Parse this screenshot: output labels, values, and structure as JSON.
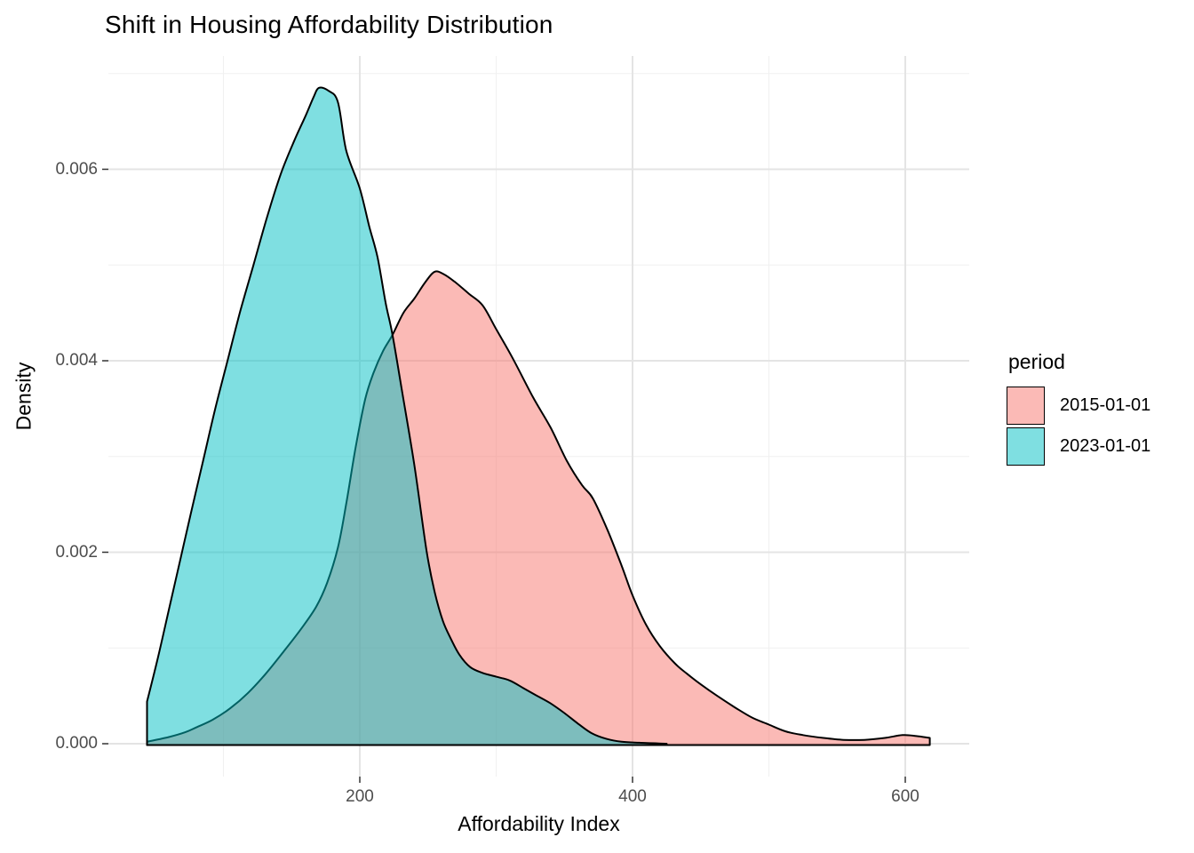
{
  "title": "Shift in Housing Affordability Distribution",
  "chart_data": {
    "type": "area",
    "subtype": "overlapping-density",
    "title": "Shift in Housing Affordability Distribution",
    "xlabel": "Affordability Index",
    "ylabel": "Density",
    "legend_title": "period",
    "legend_position": "right",
    "grid": true,
    "background": "#FFFFFF",
    "grid_major_color": "#E4E4E4",
    "grid_minor_color": "#F0F0F0",
    "tick_mark_color": "#333333",
    "tick_label_color": "#4D4D4D",
    "outline_color": "#000000",
    "fill_alpha": 0.5,
    "xlim": [
      15.6,
      646.9
    ],
    "ylim": [
      -0.000343,
      0.00718
    ],
    "x_ticks": [
      {
        "value": 200,
        "label": "200"
      },
      {
        "value": 400,
        "label": "400"
      },
      {
        "value": 600,
        "label": "600"
      }
    ],
    "y_ticks": [
      {
        "value": 0.0,
        "label": "0.000"
      },
      {
        "value": 0.002,
        "label": "0.002"
      },
      {
        "value": 0.004,
        "label": "0.004"
      },
      {
        "value": 0.006,
        "label": "0.006"
      }
    ],
    "x_minor": [
      100,
      300,
      500
    ],
    "y_minor": [
      0.001,
      0.003,
      0.005,
      0.007
    ],
    "series": [
      {
        "name": "2015-01-01",
        "color": "#F8766D",
        "peak": {
          "x": 255,
          "density": 0.00493
        },
        "points": [
          [
            44,
            2e-05
          ],
          [
            60,
            7e-05
          ],
          [
            72,
            0.00012
          ],
          [
            80,
            0.00017
          ],
          [
            92,
            0.00025
          ],
          [
            105,
            0.00037
          ],
          [
            118,
            0.00053
          ],
          [
            131,
            0.00073
          ],
          [
            144,
            0.00096
          ],
          [
            157,
            0.0012
          ],
          [
            168,
            0.00143
          ],
          [
            176,
            0.00168
          ],
          [
            184,
            0.00205
          ],
          [
            190,
            0.0025
          ],
          [
            197,
            0.0031
          ],
          [
            204,
            0.0036
          ],
          [
            210,
            0.00387
          ],
          [
            217,
            0.0041
          ],
          [
            224,
            0.00427
          ],
          [
            232,
            0.0045
          ],
          [
            240,
            0.00465
          ],
          [
            248,
            0.00482
          ],
          [
            255,
            0.00493
          ],
          [
            262,
            0.0049
          ],
          [
            270,
            0.00482
          ],
          [
            280,
            0.0047
          ],
          [
            290,
            0.00458
          ],
          [
            300,
            0.00433
          ],
          [
            312,
            0.00403
          ],
          [
            327,
            0.00362
          ],
          [
            340,
            0.0033
          ],
          [
            352,
            0.00295
          ],
          [
            363,
            0.0027
          ],
          [
            371,
            0.00256
          ],
          [
            382,
            0.00222
          ],
          [
            392,
            0.00186
          ],
          [
            400,
            0.00155
          ],
          [
            410,
            0.00124
          ],
          [
            420,
            0.00102
          ],
          [
            431,
            0.00084
          ],
          [
            440,
            0.00073
          ],
          [
            450,
            0.00062
          ],
          [
            462,
            0.0005
          ],
          [
            475,
            0.00038
          ],
          [
            488,
            0.00027
          ],
          [
            500,
            0.0002
          ],
          [
            512,
            0.00013
          ],
          [
            525,
            9e-05
          ],
          [
            540,
            6e-05
          ],
          [
            555,
            4e-05
          ],
          [
            570,
            4e-05
          ],
          [
            585,
            6e-05
          ],
          [
            598,
            9e-05
          ],
          [
            608,
            8e-05
          ],
          [
            618,
            6e-05
          ]
        ]
      },
      {
        "name": "2023-01-01",
        "color": "#00BFC4",
        "peak": {
          "x": 170,
          "density": 0.00685
        },
        "points": [
          [
            44,
            0.00044
          ],
          [
            52,
            0.0009
          ],
          [
            60,
            0.0014
          ],
          [
            68,
            0.0019
          ],
          [
            76,
            0.0024
          ],
          [
            85,
            0.00295
          ],
          [
            94,
            0.0035
          ],
          [
            103,
            0.004
          ],
          [
            112,
            0.0045
          ],
          [
            122,
            0.005
          ],
          [
            132,
            0.0055
          ],
          [
            142,
            0.00595
          ],
          [
            152,
            0.0063
          ],
          [
            160,
            0.00655
          ],
          [
            166,
            0.00675
          ],
          [
            170,
            0.00685
          ],
          [
            177,
            0.00682
          ],
          [
            184,
            0.0067
          ],
          [
            190,
            0.0062
          ],
          [
            200,
            0.0058
          ],
          [
            207,
            0.0054
          ],
          [
            213,
            0.00508
          ],
          [
            219,
            0.0046
          ],
          [
            224,
            0.00427
          ],
          [
            231,
            0.00368
          ],
          [
            240,
            0.00291
          ],
          [
            249,
            0.00201
          ],
          [
            255,
            0.00158
          ],
          [
            261,
            0.00128
          ],
          [
            267,
            0.00109
          ],
          [
            273,
            0.00093
          ],
          [
            281,
            0.0008
          ],
          [
            290,
            0.00074
          ],
          [
            300,
            0.0007
          ],
          [
            310,
            0.00066
          ],
          [
            320,
            0.00058
          ],
          [
            330,
            0.0005
          ],
          [
            340,
            0.00042
          ],
          [
            350,
            0.00032
          ],
          [
            360,
            0.00021
          ],
          [
            370,
            0.00011
          ],
          [
            381,
            5e-05
          ],
          [
            392,
            2e-05
          ],
          [
            405,
            1e-05
          ],
          [
            425,
            0.0
          ]
        ]
      }
    ]
  },
  "legend": {
    "title": "period",
    "entries": [
      {
        "label": "2015-01-01",
        "color": "#F8766D"
      },
      {
        "label": "2023-01-01",
        "color": "#00BFC4"
      }
    ]
  }
}
